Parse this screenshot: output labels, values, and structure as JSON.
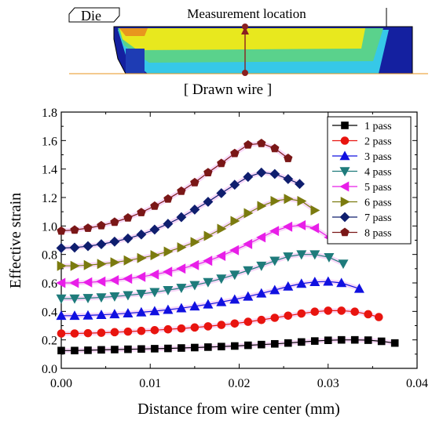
{
  "inset": {
    "die_label": "Die",
    "measurement_label": "Measurement location",
    "wire_label": "[ Drawn wire ]"
  },
  "chart_data": {
    "type": "line",
    "xlabel": "Distance from wire center (mm)",
    "ylabel": "Effective strain",
    "xlim": [
      0.0,
      0.04
    ],
    "ylim": [
      0.0,
      1.8
    ],
    "xticks": [
      "0.00",
      "0.01",
      "0.02",
      "0.03",
      "0.04"
    ],
    "yticks": [
      "0.0",
      "0.2",
      "0.4",
      "0.6",
      "0.8",
      "1.0",
      "1.2",
      "1.4",
      "1.6",
      "1.8"
    ],
    "grid": false,
    "legend_position": "top-right",
    "series": [
      {
        "name": "1 pass",
        "color": "#000000",
        "marker": "square",
        "x": [
          0.0,
          0.0015,
          0.003,
          0.0045,
          0.006,
          0.0075,
          0.009,
          0.0105,
          0.012,
          0.0135,
          0.015,
          0.0165,
          0.018,
          0.0195,
          0.021,
          0.0225,
          0.024,
          0.0255,
          0.027,
          0.0285,
          0.03,
          0.0315,
          0.033,
          0.0345,
          0.036,
          0.0375
        ],
        "y": [
          0.125,
          0.125,
          0.127,
          0.13,
          0.132,
          0.134,
          0.136,
          0.138,
          0.14,
          0.143,
          0.146,
          0.149,
          0.153,
          0.157,
          0.162,
          0.167,
          0.172,
          0.178,
          0.185,
          0.192,
          0.197,
          0.2,
          0.2,
          0.198,
          0.19,
          0.178
        ]
      },
      {
        "name": "2 pass",
        "color": "#e8140f",
        "marker": "circle",
        "x": [
          0.0,
          0.0015,
          0.003,
          0.0045,
          0.006,
          0.0075,
          0.009,
          0.0105,
          0.012,
          0.0135,
          0.015,
          0.0165,
          0.018,
          0.0195,
          0.021,
          0.0225,
          0.024,
          0.0255,
          0.027,
          0.0285,
          0.03,
          0.0315,
          0.033,
          0.0345,
          0.0357
        ],
        "y": [
          0.245,
          0.245,
          0.247,
          0.25,
          0.254,
          0.258,
          0.263,
          0.268,
          0.274,
          0.28,
          0.287,
          0.295,
          0.305,
          0.315,
          0.327,
          0.34,
          0.355,
          0.37,
          0.385,
          0.398,
          0.405,
          0.405,
          0.398,
          0.38,
          0.36
        ]
      },
      {
        "name": "3 pass",
        "color": "#1010e0",
        "marker": "triangle-up",
        "x": [
          0.0,
          0.0015,
          0.003,
          0.0045,
          0.006,
          0.0075,
          0.009,
          0.0105,
          0.012,
          0.0135,
          0.015,
          0.0165,
          0.018,
          0.0195,
          0.021,
          0.0225,
          0.024,
          0.0255,
          0.027,
          0.0285,
          0.03,
          0.0315,
          0.0335
        ],
        "y": [
          0.37,
          0.37,
          0.372,
          0.376,
          0.381,
          0.387,
          0.394,
          0.402,
          0.412,
          0.423,
          0.436,
          0.45,
          0.466,
          0.484,
          0.505,
          0.527,
          0.55,
          0.575,
          0.595,
          0.607,
          0.61,
          0.6,
          0.56
        ]
      },
      {
        "name": "4 pass",
        "color": "#1e7b7b",
        "marker": "triangle-down",
        "x": [
          0.0,
          0.0015,
          0.003,
          0.0045,
          0.006,
          0.0075,
          0.009,
          0.0105,
          0.012,
          0.0135,
          0.015,
          0.0165,
          0.018,
          0.0195,
          0.021,
          0.0225,
          0.024,
          0.0255,
          0.027,
          0.0285,
          0.0301,
          0.0317
        ],
        "y": [
          0.49,
          0.49,
          0.493,
          0.498,
          0.505,
          0.513,
          0.523,
          0.535,
          0.549,
          0.565,
          0.584,
          0.605,
          0.63,
          0.657,
          0.688,
          0.72,
          0.755,
          0.785,
          0.8,
          0.8,
          0.78,
          0.735
        ]
      },
      {
        "name": "5 pass",
        "color": "#e81ee8",
        "marker": "triangle-left",
        "x": [
          0.0,
          0.0015,
          0.003,
          0.0045,
          0.006,
          0.0075,
          0.009,
          0.0105,
          0.012,
          0.0135,
          0.015,
          0.0165,
          0.018,
          0.0195,
          0.021,
          0.0225,
          0.024,
          0.0255,
          0.027,
          0.0285,
          0.0301
        ],
        "y": [
          0.6,
          0.6,
          0.604,
          0.61,
          0.619,
          0.63,
          0.643,
          0.659,
          0.678,
          0.7,
          0.725,
          0.755,
          0.79,
          0.83,
          0.873,
          0.92,
          0.965,
          0.995,
          1.005,
          0.985,
          0.92
        ]
      },
      {
        "name": "6 pass",
        "color": "#7b7b0f",
        "marker": "triangle-right",
        "x": [
          0.0,
          0.0015,
          0.003,
          0.0045,
          0.006,
          0.0075,
          0.009,
          0.0105,
          0.012,
          0.0135,
          0.015,
          0.0165,
          0.018,
          0.0195,
          0.021,
          0.0225,
          0.024,
          0.0255,
          0.027,
          0.0285
        ],
        "y": [
          0.72,
          0.72,
          0.725,
          0.733,
          0.744,
          0.758,
          0.775,
          0.795,
          0.82,
          0.85,
          0.887,
          0.93,
          0.98,
          1.035,
          1.09,
          1.14,
          1.175,
          1.19,
          1.175,
          1.11
        ]
      },
      {
        "name": "7 pass",
        "color": "#0f1e6e",
        "marker": "diamond",
        "x": [
          0.0,
          0.0015,
          0.003,
          0.0045,
          0.006,
          0.0075,
          0.009,
          0.0105,
          0.012,
          0.0135,
          0.015,
          0.0165,
          0.018,
          0.0195,
          0.021,
          0.0225,
          0.024,
          0.0255,
          0.0268
        ],
        "y": [
          0.845,
          0.848,
          0.858,
          0.872,
          0.89,
          0.912,
          0.94,
          0.975,
          1.015,
          1.062,
          1.115,
          1.17,
          1.23,
          1.29,
          1.345,
          1.375,
          1.365,
          1.33,
          1.295
        ]
      },
      {
        "name": "8 pass",
        "color": "#7a1717",
        "marker": "pentagon",
        "x": [
          0.0,
          0.0015,
          0.003,
          0.0045,
          0.006,
          0.0075,
          0.009,
          0.0105,
          0.012,
          0.0135,
          0.015,
          0.0165,
          0.018,
          0.0195,
          0.021,
          0.0225,
          0.024,
          0.0255
        ],
        "y": [
          0.965,
          0.972,
          0.985,
          1.003,
          1.027,
          1.057,
          1.095,
          1.14,
          1.19,
          1.245,
          1.305,
          1.375,
          1.44,
          1.51,
          1.57,
          1.58,
          1.545,
          1.475
        ]
      }
    ]
  }
}
